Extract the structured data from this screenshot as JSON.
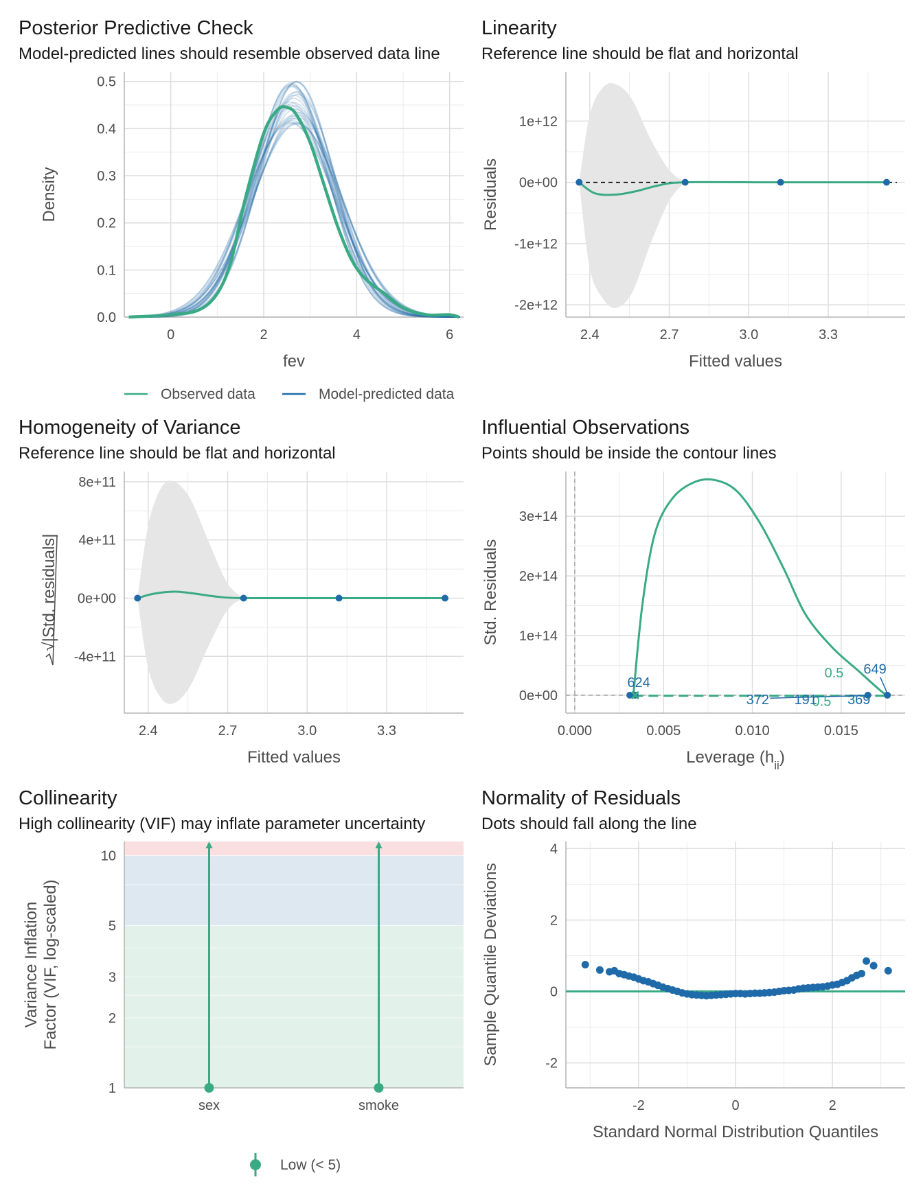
{
  "colors": {
    "observed": "#3aaa85",
    "predicted": "#1f6aa8",
    "ribbon": "#e6e6e6",
    "grid": "#ebebeb",
    "zone_high": "#f9dfe0",
    "zone_moderate": "#dde8f1",
    "zone_low": "#e2f1ea"
  },
  "chart_data": [
    {
      "id": "ppc",
      "type": "line",
      "title": "Posterior Predictive Check",
      "subtitle": "Model-predicted lines should resemble observed data line",
      "xlabel": "fev",
      "ylabel": "Density",
      "xlim": [
        -1,
        6.3
      ],
      "ylim": [
        0,
        0.52
      ],
      "xticks": [
        0,
        2,
        4,
        6
      ],
      "yticks": [
        0.0,
        0.1,
        0.2,
        0.3,
        0.4,
        0.5
      ],
      "ytick_labels": [
        "0.0",
        "0.1",
        "0.2",
        "0.3",
        "0.4",
        "0.5"
      ],
      "legend": {
        "position": "bottom",
        "items": [
          "Observed data",
          "Model-predicted data"
        ]
      },
      "observed": {
        "name": "Observed data",
        "x": [
          -0.9,
          0.0,
          0.6,
          1.0,
          1.3,
          1.6,
          2.0,
          2.3,
          2.5,
          2.7,
          3.0,
          3.3,
          3.6,
          3.9,
          4.2,
          4.6,
          5.0,
          5.5,
          6.0,
          6.2
        ],
        "y": [
          0.0,
          0.005,
          0.015,
          0.05,
          0.12,
          0.25,
          0.39,
          0.44,
          0.445,
          0.43,
          0.37,
          0.28,
          0.19,
          0.12,
          0.08,
          0.05,
          0.02,
          0.005,
          0.005,
          0.0
        ]
      },
      "predicted": {
        "name": "Model-predicted data",
        "n_draws": 30,
        "mean": 2.65,
        "sd": 0.9,
        "peak_range": [
          0.41,
          0.5
        ]
      }
    },
    {
      "id": "linearity",
      "type": "line",
      "title": "Linearity",
      "subtitle": "Reference line should be flat and horizontal",
      "xlabel": "Fitted values",
      "ylabel": "Residuals",
      "xlim": [
        2.31,
        3.59
      ],
      "ylim": [
        -2200000000000.0,
        1800000000000.0
      ],
      "xticks": [
        2.4,
        2.7,
        3.0,
        3.3
      ],
      "xtick_labels": [
        "2.4",
        "2.7",
        "3.0",
        "3.3"
      ],
      "yticks": [
        1000000000000.0,
        0,
        -1000000000000.0,
        -2000000000000.0
      ],
      "ytick_labels": [
        "1e+12",
        "0e+00",
        "-1e+12",
        "-2e+12"
      ],
      "points": {
        "x": [
          2.36,
          2.76,
          3.12,
          3.52
        ],
        "y": [
          0,
          0,
          0,
          0
        ]
      },
      "smooth": {
        "x": [
          2.36,
          2.42,
          2.5,
          2.58,
          2.66,
          2.76,
          3.12,
          3.52
        ],
        "y": [
          0,
          -180000000000.0,
          -200000000000.0,
          -140000000000.0,
          -50000000000.0,
          0,
          0,
          0
        ]
      },
      "ribbon": {
        "x": [
          2.36,
          2.4,
          2.45,
          2.5,
          2.56,
          2.63,
          2.7,
          2.76
        ],
        "upper": [
          0,
          1100000000000.0,
          1550000000000.0,
          1600000000000.0,
          1350000000000.0,
          700000000000.0,
          200000000000.0,
          0
        ],
        "lower": [
          0,
          -1400000000000.0,
          -1900000000000.0,
          -2050000000000.0,
          -1800000000000.0,
          -1000000000000.0,
          -300000000000.0,
          0
        ]
      }
    },
    {
      "id": "homogeneity",
      "type": "line",
      "title": "Homogeneity of Variance",
      "subtitle": "Reference line should be flat and horizontal",
      "xlabel": "Fitted values",
      "ylabel": "√|Std. residuals|",
      "xlim": [
        2.31,
        3.59
      ],
      "ylim": [
        -790000000000.0,
        870000000000.0
      ],
      "xticks": [
        2.4,
        2.7,
        3.0,
        3.3
      ],
      "xtick_labels": [
        "2.4",
        "2.7",
        "3.0",
        "3.3"
      ],
      "yticks": [
        800000000000.0,
        400000000000.0,
        0,
        -400000000000.0
      ],
      "ytick_labels": [
        "8e+11",
        "4e+11",
        "0e+00",
        "-4e+11"
      ],
      "points": {
        "x": [
          2.36,
          2.76,
          3.12,
          3.52
        ],
        "y": [
          0,
          0,
          0,
          0
        ]
      },
      "smooth": {
        "x": [
          2.36,
          2.42,
          2.5,
          2.58,
          2.66,
          2.76,
          3.12,
          3.52
        ],
        "y": [
          0,
          30000000000.0,
          45000000000.0,
          30000000000.0,
          10000000000.0,
          0,
          0,
          0
        ]
      },
      "ribbon": {
        "x": [
          2.36,
          2.4,
          2.45,
          2.5,
          2.56,
          2.63,
          2.7,
          2.76
        ],
        "upper": [
          0,
          500000000000.0,
          760000000000.0,
          800000000000.0,
          680000000000.0,
          380000000000.0,
          100000000000.0,
          0
        ],
        "lower": [
          0,
          -480000000000.0,
          -690000000000.0,
          -720000000000.0,
          -600000000000.0,
          -320000000000.0,
          -80000000000.0,
          0
        ]
      }
    },
    {
      "id": "influential",
      "type": "scatter",
      "title": "Influential Observations",
      "subtitle": "Points should be inside the contour lines",
      "xlabel": "Leverage (h",
      "xlabel_sub": "ii",
      "xlabel_end": ")",
      "ylabel": "Std. Residuals",
      "xlim": [
        -0.0005,
        0.0186
      ],
      "ylim": [
        -30000000000000.0,
        375000000000000.0
      ],
      "xticks": [
        0.0,
        0.005,
        0.01,
        0.015
      ],
      "xtick_labels": [
        "0.000",
        "0.005",
        "0.010",
        "0.015"
      ],
      "yticks": [
        0,
        100000000000000.0,
        200000000000000.0,
        300000000000000.0
      ],
      "ytick_labels": [
        "0e+00",
        "1e+14",
        "2e+14",
        "3e+14"
      ],
      "contour": {
        "x": [
          0.0033,
          0.0038,
          0.0045,
          0.0055,
          0.0068,
          0.008,
          0.0092,
          0.0105,
          0.0118,
          0.013,
          0.0145,
          0.016,
          0.0172,
          0.0176
        ],
        "y": [
          0,
          150000000000000.0,
          270000000000000.0,
          330000000000000.0,
          358000000000000.0,
          360000000000000.0,
          340000000000000.0,
          285000000000000.0,
          210000000000000.0,
          135000000000000.0,
          80000000000000.0,
          40000000000000.0,
          8000000000000.0,
          0
        ]
      },
      "contour_labels": [
        {
          "text": "0.5",
          "x": 0.0146,
          "y": 30000000000000.0
        },
        {
          "text": "0.5",
          "x": 0.0139,
          "y": -18000000000000.0
        }
      ],
      "points": {
        "x": [
          0.0031,
          0.0034,
          0.0165,
          0.0176
        ],
        "y": [
          0,
          0,
          0,
          0
        ]
      },
      "point_labels": [
        {
          "text": "624",
          "x": 0.0036,
          "y": 22000000000000.0
        },
        {
          "text": "649",
          "x": 0.0169,
          "y": 44000000000000.0
        },
        {
          "text": "372",
          "x": 0.0103,
          "y": -7000000000000.0
        },
        {
          "text": "191",
          "x": 0.013,
          "y": -7000000000000.0
        },
        {
          "text": "369",
          "x": 0.016,
          "y": -7000000000000.0
        }
      ]
    },
    {
      "id": "collinearity",
      "type": "scatter",
      "title": "Collinearity",
      "subtitle": "High collinearity (VIF) may inflate parameter uncertainty",
      "xlabel": "",
      "ylabel_line1": "Variance Inflation",
      "ylabel_line2": "Factor (VIF, log-scaled)",
      "yscale": "log",
      "ylim": [
        1,
        11.5
      ],
      "categories": [
        "sex",
        "smoke"
      ],
      "yticks": [
        1,
        2,
        3,
        5,
        10
      ],
      "ytick_labels": [
        "1",
        "2",
        "3",
        "5",
        "10"
      ],
      "values": [
        1,
        1
      ],
      "ci_high": [
        11.5,
        11.5
      ],
      "zones": [
        {
          "from": 1,
          "to": 5
        },
        {
          "from": 5,
          "to": 10
        },
        {
          "from": 10,
          "to": 11.5
        }
      ],
      "legend": {
        "position": "bottom",
        "items": [
          "Low (< 5)"
        ]
      }
    },
    {
      "id": "normality",
      "type": "scatter",
      "title": "Normality of Residuals",
      "subtitle": "Dots should fall along the line",
      "xlabel": "Standard Normal Distribution Quantiles",
      "ylabel": "Sample Quantile Deviations",
      "xlim": [
        -3.5,
        3.5
      ],
      "ylim": [
        -2.7,
        4.2
      ],
      "xticks": [
        -2,
        0,
        2
      ],
      "xtick_labels": [
        "-2",
        "0",
        "2"
      ],
      "yticks": [
        -2,
        0,
        2,
        4
      ],
      "ytick_labels": [
        "-2",
        "0",
        "2",
        "4"
      ],
      "points": {
        "x": [
          -3.1,
          -2.8,
          -2.6,
          -2.5,
          -2.4,
          -2.3,
          -2.2,
          -2.1,
          -2.0,
          -1.9,
          -1.8,
          -1.7,
          -1.6,
          -1.5,
          -1.4,
          -1.3,
          -1.2,
          -1.1,
          -1.0,
          -0.9,
          -0.8,
          -0.7,
          -0.6,
          -0.5,
          -0.4,
          -0.3,
          -0.2,
          -0.1,
          0.0,
          0.1,
          0.2,
          0.3,
          0.4,
          0.5,
          0.6,
          0.7,
          0.8,
          0.9,
          1.0,
          1.1,
          1.2,
          1.3,
          1.4,
          1.5,
          1.6,
          1.7,
          1.8,
          1.9,
          2.0,
          2.1,
          2.2,
          2.3,
          2.4,
          2.5,
          2.6,
          2.7,
          2.85,
          3.15
        ],
        "y": [
          0.75,
          0.6,
          0.55,
          0.58,
          0.5,
          0.47,
          0.43,
          0.4,
          0.35,
          0.3,
          0.27,
          0.22,
          0.17,
          0.12,
          0.08,
          0.04,
          0.0,
          -0.04,
          -0.07,
          -0.09,
          -0.1,
          -0.11,
          -0.12,
          -0.11,
          -0.1,
          -0.09,
          -0.08,
          -0.07,
          -0.06,
          -0.06,
          -0.07,
          -0.06,
          -0.05,
          -0.05,
          -0.04,
          -0.03,
          -0.02,
          0.0,
          0.02,
          0.03,
          0.04,
          0.07,
          0.09,
          0.1,
          0.11,
          0.12,
          0.13,
          0.15,
          0.18,
          0.2,
          0.25,
          0.3,
          0.38,
          0.45,
          0.5,
          0.85,
          0.72,
          0.58
        ]
      },
      "reference_line": {
        "y": 0
      }
    }
  ]
}
